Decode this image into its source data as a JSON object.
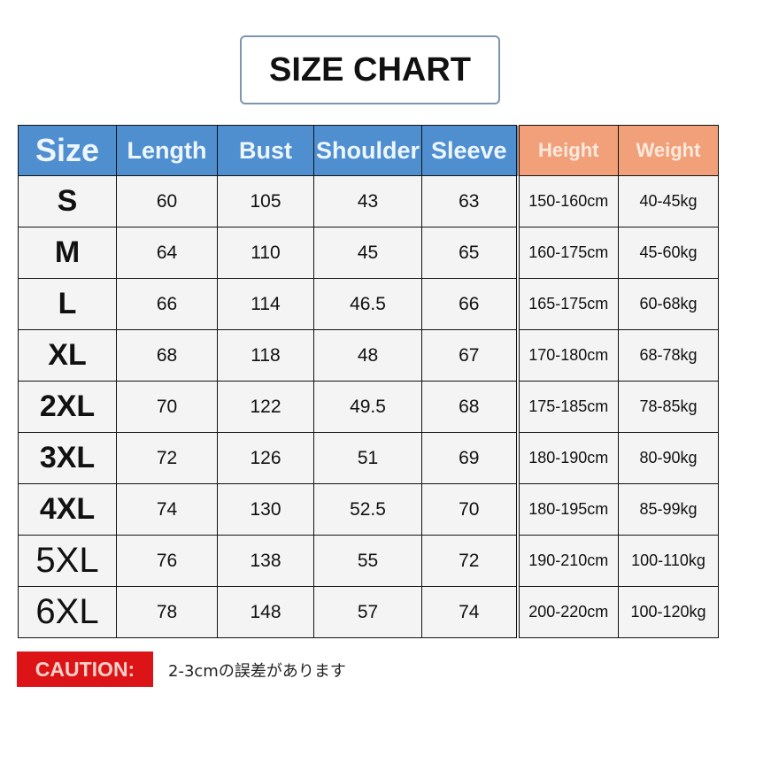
{
  "title": "SIZE CHART",
  "headers": [
    "Size",
    "Length",
    "Bust",
    "Shoulder",
    "Sleeve",
    "Height",
    "Weight"
  ],
  "colors": {
    "header_blue": "#4f8fd0",
    "header_orange": "#f1a07a",
    "caution_red": "#dc1418"
  },
  "rows": [
    [
      "S",
      "60",
      "105",
      "43",
      "63",
      "150-160cm",
      "40-45kg"
    ],
    [
      "M",
      "64",
      "110",
      "45",
      "65",
      "160-175cm",
      "45-60kg"
    ],
    [
      "L",
      "66",
      "114",
      "46.5",
      "66",
      "165-175cm",
      "60-68kg"
    ],
    [
      "XL",
      "68",
      "118",
      "48",
      "67",
      "170-180cm",
      "68-78kg"
    ],
    [
      "2XL",
      "70",
      "122",
      "49.5",
      "68",
      "175-185cm",
      "78-85kg"
    ],
    [
      "3XL",
      "72",
      "126",
      "51",
      "69",
      "180-190cm",
      "80-90kg"
    ],
    [
      "4XL",
      "74",
      "130",
      "52.5",
      "70",
      "180-195cm",
      "85-99kg"
    ],
    [
      "5XL",
      "76",
      "138",
      "55",
      "72",
      "190-210cm",
      "100-110kg"
    ],
    [
      "6XL",
      "78",
      "148",
      "57",
      "74",
      "200-220cm",
      "100-120kg"
    ]
  ],
  "caution": {
    "label": "CAUTION:",
    "text": "2-3cmの誤差があります"
  }
}
